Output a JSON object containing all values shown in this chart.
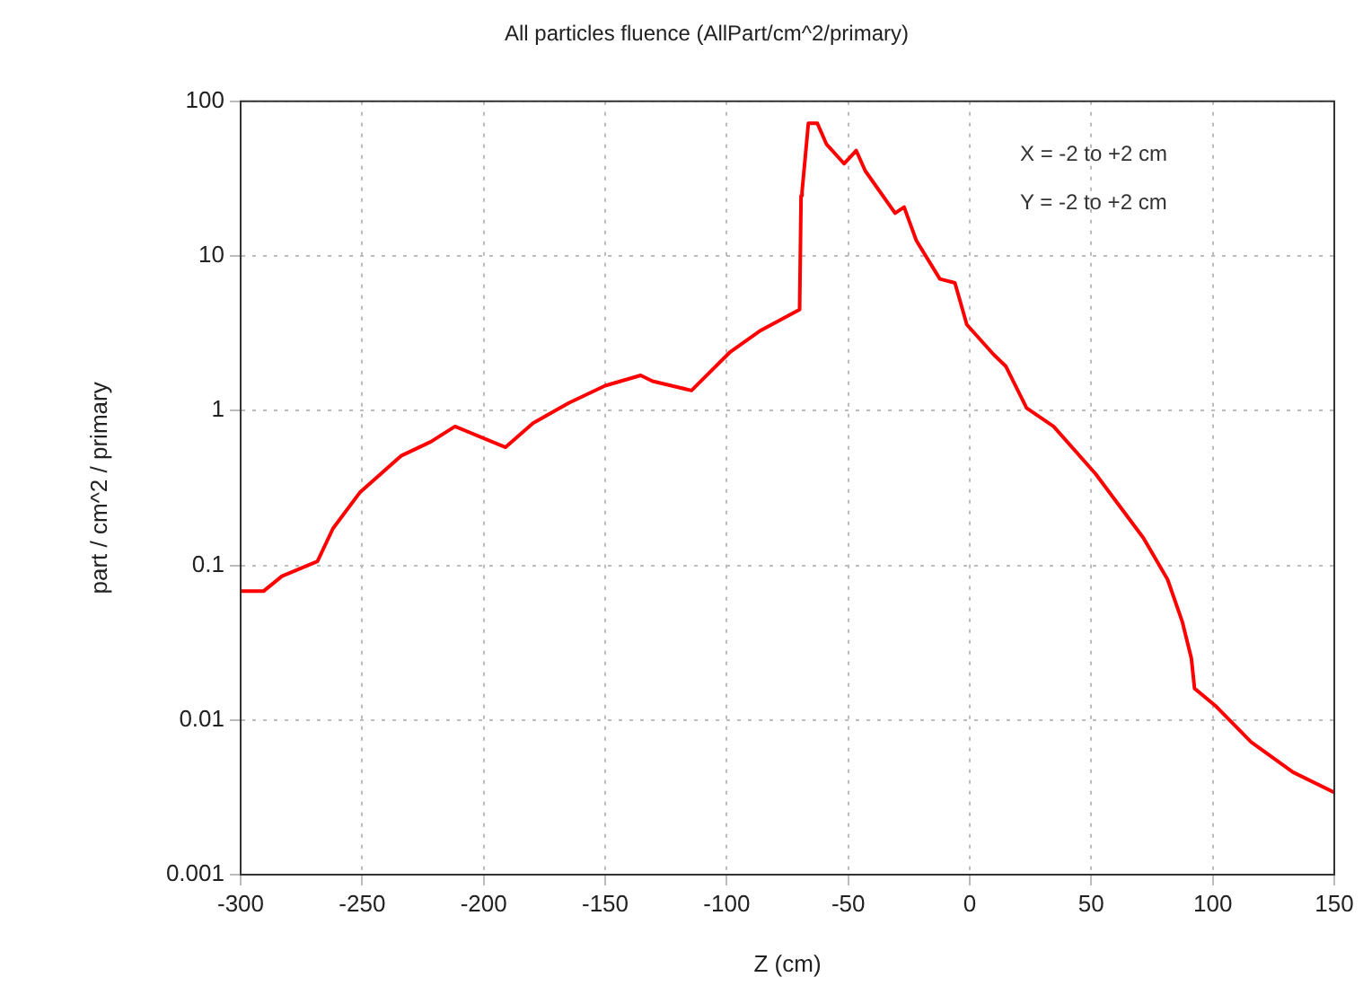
{
  "chart_data": {
    "type": "line",
    "title": "All particles fluence (AllPart/cm^2/primary)",
    "xlabel": "Z (cm)",
    "ylabel": "part / cm^2 / primary",
    "annotations": [
      "X = -2 to +2 cm",
      "Y = -2 to +2 cm"
    ],
    "series": [
      {
        "color": "#ff0000",
        "x": [
          -300,
          -290.6,
          -283,
          -268.4,
          -262,
          -251,
          -234,
          -221.7,
          -211.8,
          -191,
          -179.7,
          -165,
          -150,
          -135.4,
          -130.5,
          -114.5,
          -98.5,
          -86,
          -70,
          -69.4,
          -69,
          -66.4,
          -62.7,
          -59,
          -51.7,
          -46.7,
          -43,
          -30.7,
          -27,
          -22,
          -12.3,
          -6.1,
          -1.2,
          9.9,
          14.8,
          23.4,
          34.5,
          51.8,
          71.5,
          81.4,
          87.5,
          91.2,
          92.5,
          101,
          115.8,
          133,
          150
        ],
        "values": [
          0.068,
          0.068,
          0.085,
          0.106,
          0.173,
          0.295,
          0.51,
          0.63,
          0.79,
          0.58,
          0.83,
          1.12,
          1.45,
          1.69,
          1.55,
          1.35,
          2.4,
          3.3,
          4.5,
          24.5,
          26,
          72,
          72,
          53,
          39.5,
          48,
          35.5,
          18.9,
          20.7,
          12.6,
          7.1,
          6.7,
          3.6,
          2.3,
          1.94,
          1.04,
          0.79,
          0.39,
          0.15,
          0.081,
          0.043,
          0.025,
          0.016,
          0.0124,
          0.0072,
          0.0046,
          0.0034
        ]
      }
    ],
    "xlim": [
      -300,
      150
    ],
    "xticks": [
      -300,
      -250,
      -200,
      -150,
      -100,
      -50,
      0,
      50,
      100,
      150
    ],
    "ylim": [
      0.001,
      100
    ],
    "yticks": [
      0.001,
      0.01,
      0.1,
      1,
      10,
      100
    ],
    "log": "y",
    "grid": true,
    "legend": false,
    "marker": "none",
    "line_style": "solid"
  }
}
